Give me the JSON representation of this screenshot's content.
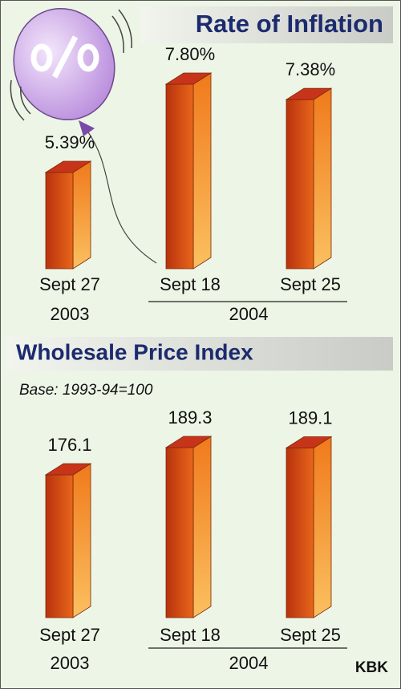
{
  "chart_data": [
    {
      "type": "bar",
      "title": "Rate of Inflation",
      "categories": [
        "Sept 27",
        "Sept 18",
        "Sept 25"
      ],
      "year_labels": [
        "2003",
        "2004"
      ],
      "values": [
        5.39,
        7.8,
        7.38
      ],
      "value_labels": [
        "5.39%",
        "7.80%",
        "7.38%"
      ],
      "color": "#e8661a"
    },
    {
      "type": "bar",
      "title": "Wholesale Price Index",
      "subtitle": "Base: 1993-94=100",
      "categories": [
        "Sept 27",
        "Sept 18",
        "Sept 25"
      ],
      "year_labels": [
        "2003",
        "2004"
      ],
      "values": [
        176.1,
        189.3,
        189.1
      ],
      "color": "#e8661a"
    }
  ],
  "credit": "KBK"
}
